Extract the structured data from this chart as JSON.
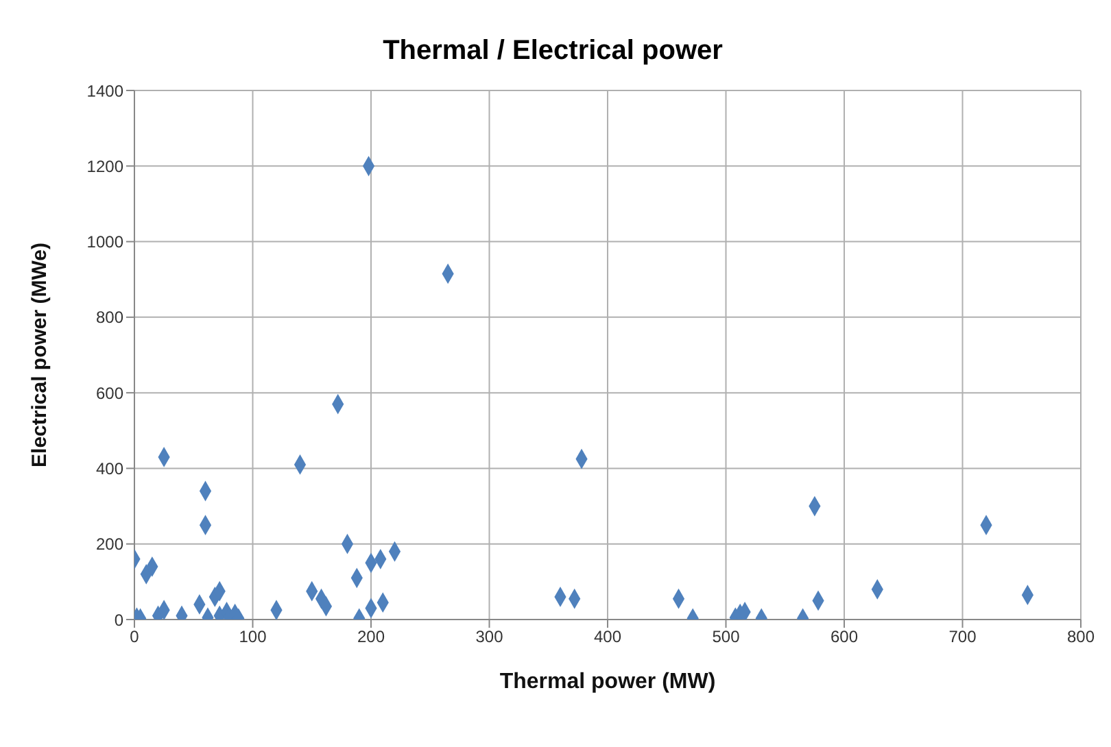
{
  "chart_data": {
    "type": "scatter",
    "title": "Thermal / Electrical power",
    "xlabel": "Thermal power (MW)",
    "ylabel": "Electrical power (MWe)",
    "x": [
      0,
      2,
      5,
      10,
      15,
      20,
      25,
      25,
      40,
      55,
      60,
      60,
      62,
      68,
      72,
      72,
      78,
      80,
      85,
      88,
      120,
      140,
      150,
      158,
      162,
      172,
      180,
      188,
      190,
      198,
      200,
      200,
      208,
      210,
      220,
      265,
      360,
      372,
      378,
      460,
      472,
      508,
      512,
      516,
      530,
      565,
      575,
      578,
      628,
      720,
      755
    ],
    "series": [
      {
        "color": "#4f81bd",
        "values": [
          160,
          5,
          3,
          120,
          140,
          10,
          25,
          430,
          10,
          40,
          340,
          250,
          5,
          60,
          75,
          10,
          20,
          5,
          15,
          3,
          25,
          410,
          75,
          55,
          35,
          570,
          200,
          110,
          3,
          1200,
          150,
          30,
          160,
          45,
          180,
          915,
          60,
          55,
          425,
          55,
          3,
          5,
          15,
          20,
          3,
          3,
          300,
          50,
          80,
          250,
          65
        ]
      }
    ],
    "xlim": [
      0,
      800
    ],
    "xticks": [
      0,
      100,
      200,
      300,
      400,
      500,
      600,
      700,
      800
    ],
    "ylim": [
      0,
      1400
    ],
    "yticks": [
      0,
      200,
      400,
      600,
      800,
      1000,
      1200,
      1400
    ],
    "grid": true,
    "marker": "diamond",
    "legend": false
  }
}
